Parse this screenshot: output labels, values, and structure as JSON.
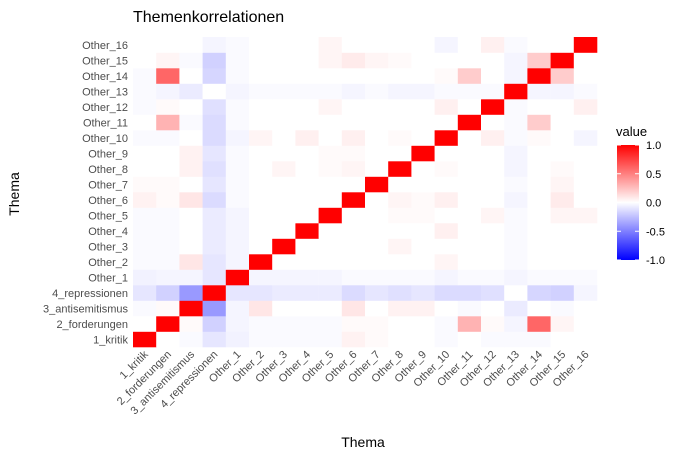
{
  "chart_data": {
    "type": "heatmap",
    "title": "Themenkorrelationen",
    "xlabel": "Thema",
    "ylabel": "Thema",
    "categories": [
      "1_kritik",
      "2_forderungen",
      "3_antisemitismus",
      "4_repressionen",
      "Other_1",
      "Other_2",
      "Other_3",
      "Other_4",
      "Other_5",
      "Other_6",
      "Other_7",
      "Other_8",
      "Other_9",
      "Other_10",
      "Other_11",
      "Other_12",
      "Other_13",
      "Other_14",
      "Other_15",
      "Other_16"
    ],
    "values": [
      [
        1.0,
        0.0,
        -0.02,
        -0.1,
        -0.05,
        -0.02,
        -0.02,
        -0.02,
        -0.02,
        0.05,
        0.02,
        0.0,
        0.0,
        -0.02,
        0.0,
        -0.02,
        -0.02,
        -0.02,
        0.0,
        0.0
      ],
      [
        0.0,
        1.0,
        0.02,
        -0.18,
        -0.04,
        -0.02,
        -0.02,
        -0.02,
        -0.02,
        0.02,
        0.02,
        0.0,
        0.0,
        -0.02,
        0.3,
        0.02,
        -0.04,
        0.6,
        0.04,
        0.0
      ],
      [
        -0.02,
        0.02,
        1.0,
        -0.4,
        -0.04,
        0.1,
        0.0,
        0.0,
        0.0,
        0.1,
        0.0,
        0.05,
        0.05,
        0.0,
        -0.02,
        0.0,
        -0.08,
        0.0,
        -0.02,
        0.0
      ],
      [
        -0.1,
        -0.18,
        -0.4,
        1.0,
        -0.1,
        -0.1,
        -0.08,
        -0.08,
        -0.08,
        -0.14,
        -0.1,
        -0.12,
        -0.1,
        -0.14,
        -0.14,
        -0.12,
        0.0,
        -0.16,
        -0.18,
        -0.04
      ],
      [
        -0.05,
        -0.04,
        -0.04,
        -0.1,
        1.0,
        -0.04,
        -0.04,
        -0.04,
        -0.04,
        -0.02,
        -0.02,
        -0.02,
        -0.02,
        -0.04,
        -0.02,
        -0.02,
        -0.04,
        -0.02,
        -0.02,
        -0.02
      ],
      [
        -0.02,
        -0.02,
        0.1,
        -0.1,
        -0.04,
        1.0,
        0.0,
        0.0,
        0.0,
        0.0,
        0.0,
        0.0,
        0.0,
        0.04,
        0.0,
        0.0,
        -0.02,
        0.0,
        0.0,
        0.0
      ],
      [
        -0.02,
        -0.02,
        0.0,
        -0.08,
        -0.04,
        0.0,
        1.0,
        0.0,
        0.0,
        0.0,
        0.0,
        0.04,
        0.0,
        0.0,
        0.0,
        0.0,
        -0.02,
        0.0,
        0.0,
        0.0
      ],
      [
        -0.02,
        -0.02,
        0.0,
        -0.08,
        -0.04,
        0.0,
        0.0,
        1.0,
        0.0,
        0.0,
        0.0,
        0.0,
        0.0,
        0.06,
        0.0,
        0.0,
        -0.02,
        0.0,
        0.0,
        0.0
      ],
      [
        -0.02,
        -0.02,
        0.0,
        -0.08,
        -0.04,
        0.0,
        0.0,
        0.0,
        1.0,
        0.0,
        0.0,
        0.02,
        0.02,
        0.0,
        0.0,
        0.04,
        -0.02,
        0.0,
        0.04,
        0.04
      ],
      [
        0.05,
        0.02,
        0.1,
        -0.14,
        -0.02,
        0.0,
        0.0,
        0.0,
        0.0,
        1.0,
        0.0,
        0.04,
        0.02,
        0.06,
        0.0,
        0.0,
        -0.04,
        0.0,
        0.08,
        0.0
      ],
      [
        0.02,
        0.02,
        0.0,
        -0.1,
        -0.02,
        0.0,
        0.0,
        0.0,
        0.0,
        0.0,
        1.0,
        0.0,
        0.0,
        0.0,
        0.0,
        0.0,
        -0.02,
        0.0,
        0.04,
        0.0
      ],
      [
        0.0,
        0.0,
        0.05,
        -0.12,
        -0.02,
        0.0,
        0.04,
        0.0,
        0.02,
        0.04,
        0.0,
        1.0,
        0.0,
        0.02,
        0.0,
        0.0,
        -0.04,
        0.0,
        0.02,
        0.0
      ],
      [
        0.0,
        0.0,
        0.05,
        -0.1,
        -0.02,
        0.0,
        0.0,
        0.0,
        0.02,
        0.02,
        0.0,
        0.0,
        1.0,
        0.0,
        0.0,
        0.0,
        -0.04,
        0.0,
        0.0,
        0.0
      ],
      [
        -0.02,
        -0.02,
        0.0,
        -0.14,
        -0.04,
        0.04,
        0.0,
        0.06,
        0.0,
        0.06,
        0.0,
        0.02,
        0.0,
        1.0,
        0.0,
        0.06,
        -0.02,
        0.02,
        0.0,
        -0.04
      ],
      [
        0.0,
        0.3,
        -0.02,
        -0.14,
        -0.02,
        0.0,
        0.0,
        0.0,
        0.0,
        0.0,
        0.0,
        0.0,
        0.0,
        0.0,
        1.0,
        0.0,
        -0.02,
        0.2,
        0.0,
        0.0
      ],
      [
        -0.02,
        0.02,
        0.0,
        -0.12,
        -0.02,
        0.0,
        0.0,
        0.0,
        0.04,
        0.0,
        0.0,
        0.0,
        0.0,
        0.06,
        0.0,
        1.0,
        -0.02,
        0.0,
        0.0,
        0.06
      ],
      [
        -0.02,
        -0.04,
        -0.08,
        0.0,
        -0.04,
        -0.02,
        -0.02,
        -0.02,
        -0.02,
        -0.04,
        -0.02,
        -0.04,
        -0.04,
        -0.02,
        -0.02,
        -0.02,
        1.0,
        -0.04,
        -0.04,
        -0.02
      ],
      [
        -0.02,
        0.6,
        0.0,
        -0.16,
        -0.02,
        0.0,
        0.0,
        0.0,
        0.0,
        0.0,
        0.0,
        0.0,
        0.0,
        0.02,
        0.2,
        0.0,
        -0.04,
        1.0,
        0.2,
        0.0
      ],
      [
        0.0,
        0.04,
        -0.02,
        -0.18,
        -0.02,
        0.0,
        0.0,
        0.0,
        0.04,
        0.08,
        0.04,
        0.02,
        0.0,
        0.0,
        0.0,
        0.0,
        -0.04,
        0.2,
        1.0,
        0.0
      ],
      [
        0.0,
        0.0,
        0.0,
        -0.04,
        -0.02,
        0.0,
        0.0,
        0.0,
        0.04,
        0.0,
        0.0,
        0.0,
        0.0,
        -0.04,
        0.0,
        0.06,
        -0.02,
        0.0,
        0.0,
        1.0
      ]
    ],
    "legend": {
      "title": "value",
      "ticks": [
        1.0,
        0.5,
        0.0,
        -0.5,
        -1.0
      ],
      "tick_labels": [
        "1.0",
        "0.5",
        "0.0",
        "-0.5",
        "-1.0"
      ],
      "range": [
        -1,
        1
      ],
      "placement": "right"
    },
    "colors": {
      "low": "#0000ff",
      "mid": "#ffffff",
      "high": "#ff0000"
    },
    "grid": false
  }
}
